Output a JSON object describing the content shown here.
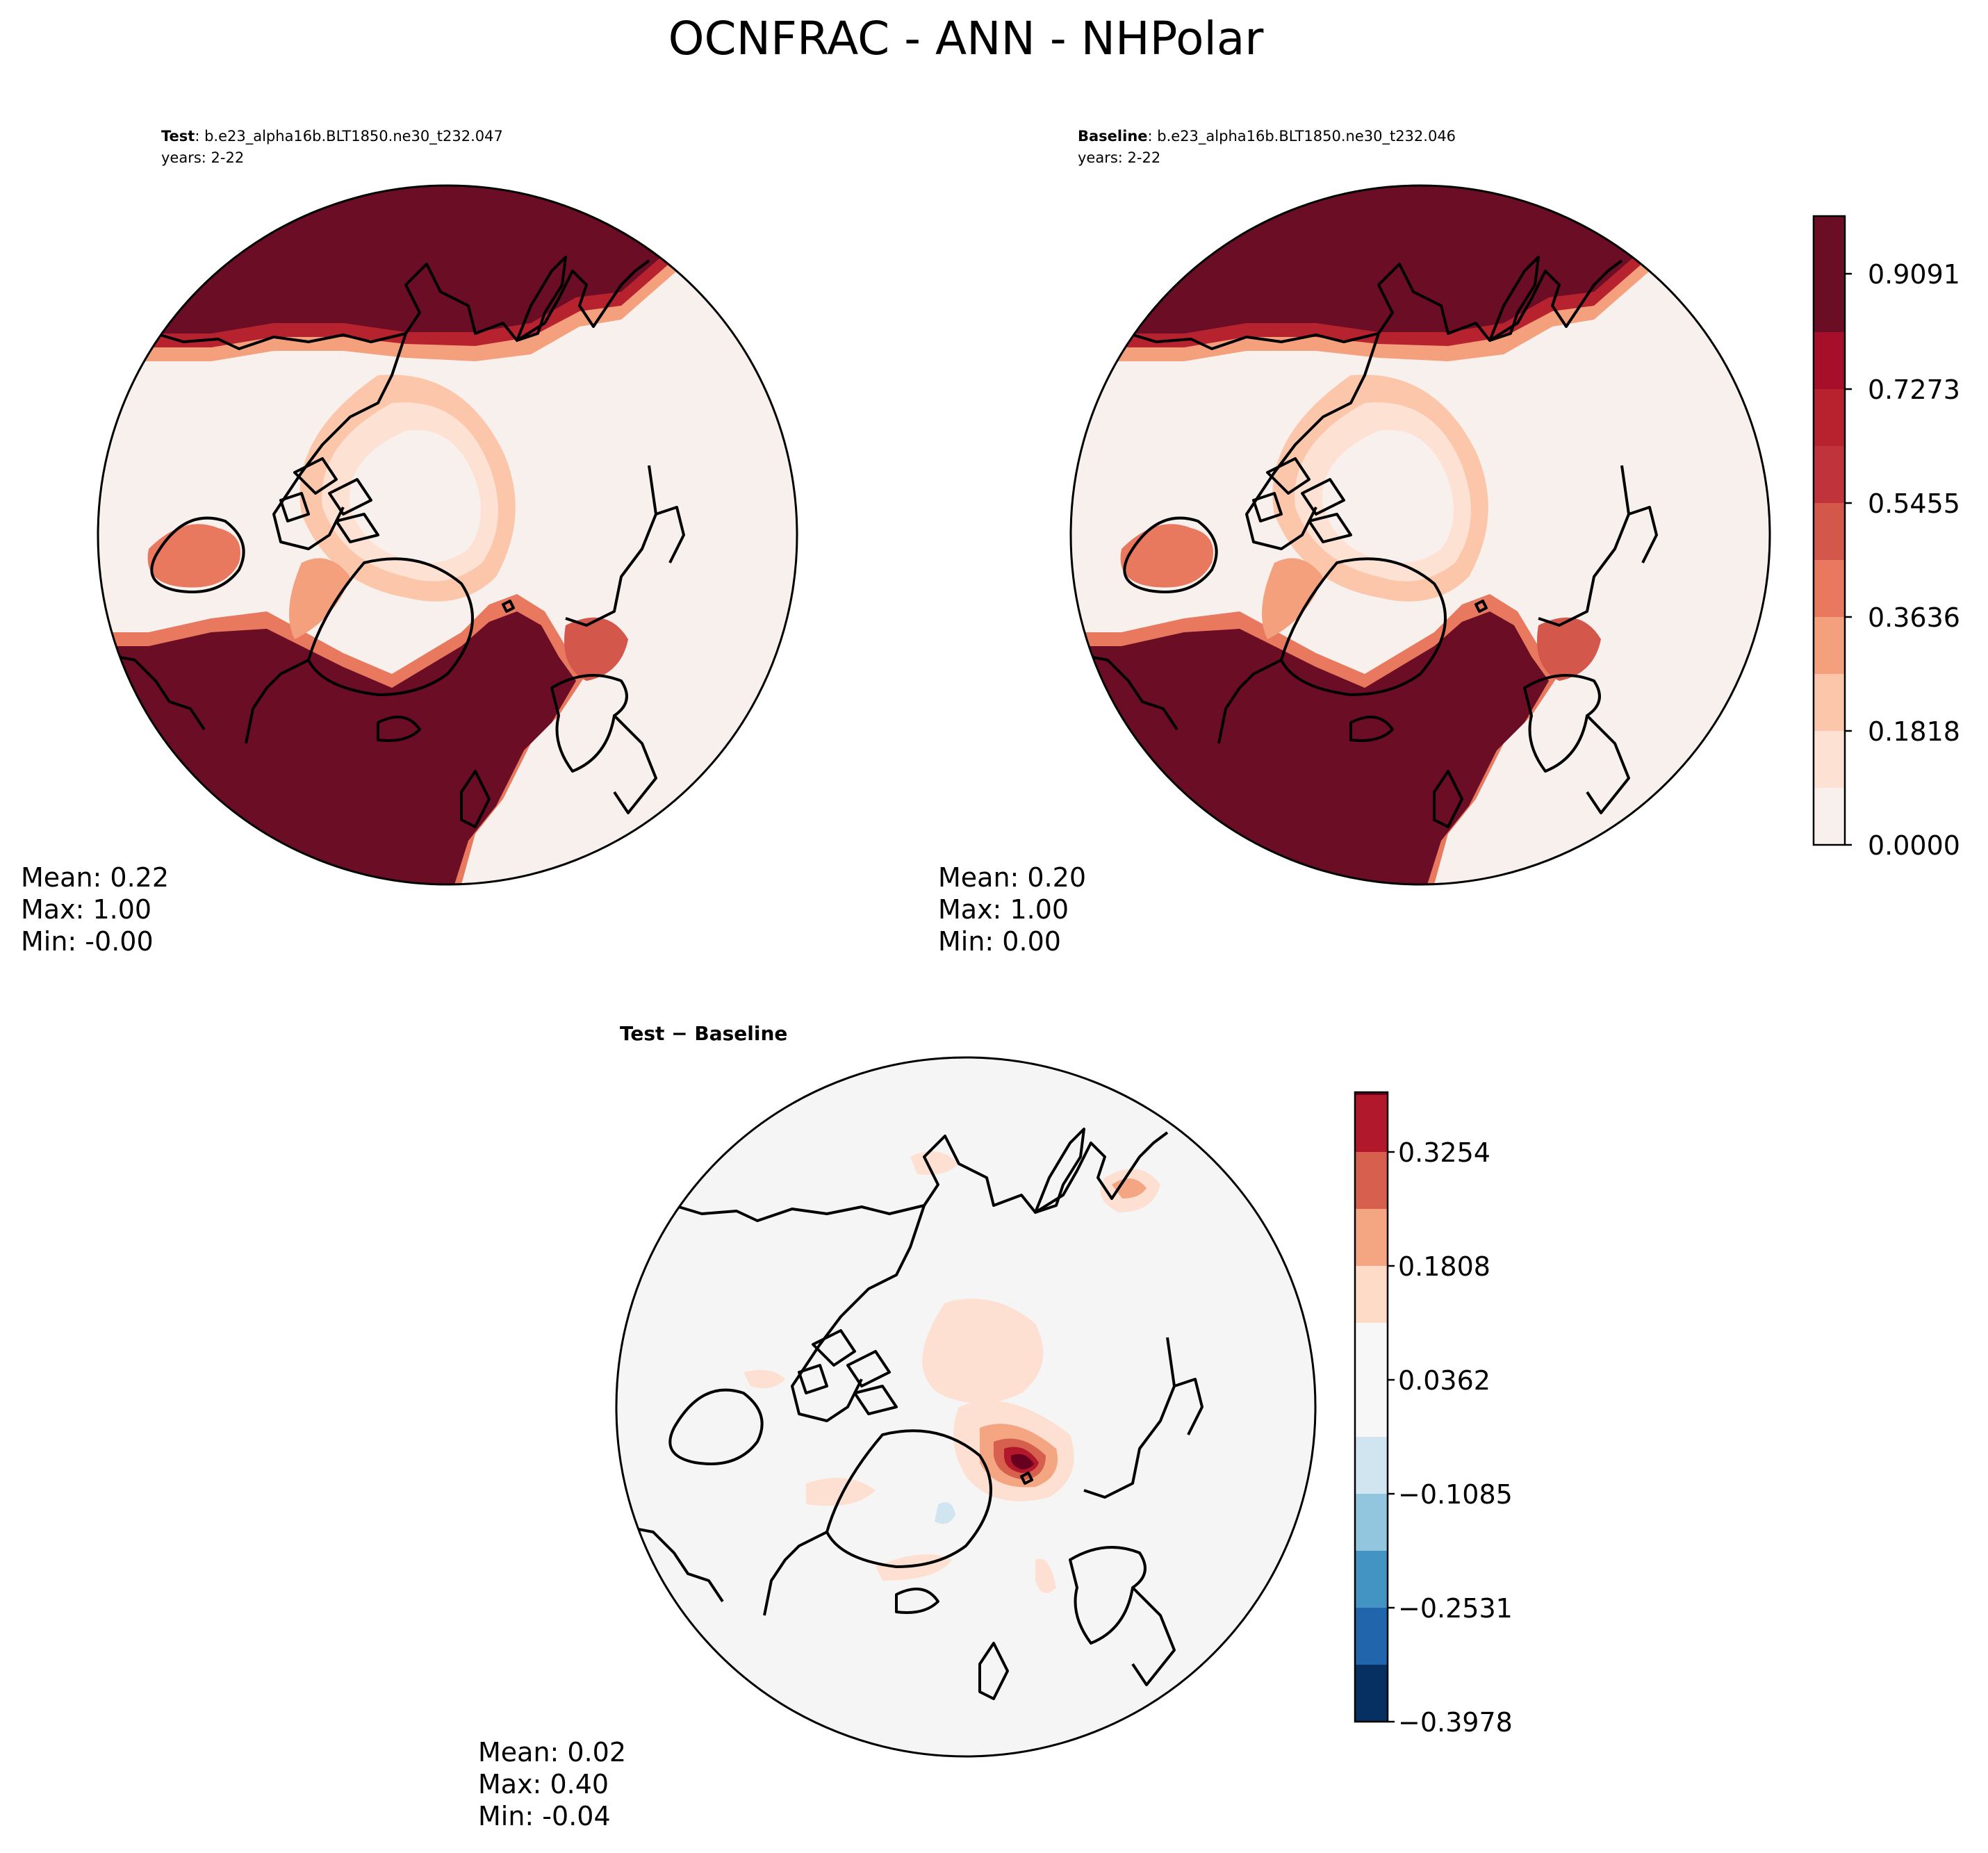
{
  "title": "OCNFRAC - ANN - NHPolar",
  "colors": {
    "ocean_high": "#6b0d24",
    "ocean_seq": [
      "#f8f0ec",
      "#fde2d4",
      "#fbc6aa",
      "#f4a07c",
      "#e8795f",
      "#d4574c",
      "#b7222f",
      "#a50f2a",
      "#6b0d24"
    ],
    "diff_neutral": "#f5f5f5",
    "diff_pos": [
      "#fde0d2",
      "#f4a582",
      "#d6604d",
      "#b2182b",
      "#67001f"
    ],
    "diff_neg": [
      "#d1e5f0",
      "#92c5de",
      "#4393c3",
      "#2166ac",
      "#053061"
    ],
    "land_line": "#000000"
  },
  "panels": {
    "test": {
      "label_bold": "Test",
      "label_rest": ": b.e23_alpha16b.BLT1850.ne30_t232.047",
      "years": "years: 2-22",
      "stats": {
        "mean": "Mean:  0.22",
        "max": "Max:  1.00",
        "min": "Min: -0.00"
      }
    },
    "baseline": {
      "label_bold": "Baseline",
      "label_rest": ": b.e23_alpha16b.BLT1850.ne30_t232.046",
      "years": "years: 2-22",
      "stats": {
        "mean": "Mean:  0.20",
        "max": "Max:  1.00",
        "min": "Min:  0.00"
      }
    },
    "diff": {
      "label": "Test − Baseline",
      "stats": {
        "mean": "Mean:  0.02",
        "max": "Max:  0.40",
        "min": "Min: -0.04"
      }
    }
  },
  "colorbar_main": {
    "ticks": [
      "0.9091",
      "0.7273",
      "0.5455",
      "0.3636",
      "0.1818",
      "0.0000"
    ]
  },
  "colorbar_diff": {
    "ticks": [
      "0.3254",
      "0.1808",
      "0.0362",
      "−0.1085",
      "−0.2531",
      "−0.3978"
    ]
  }
}
